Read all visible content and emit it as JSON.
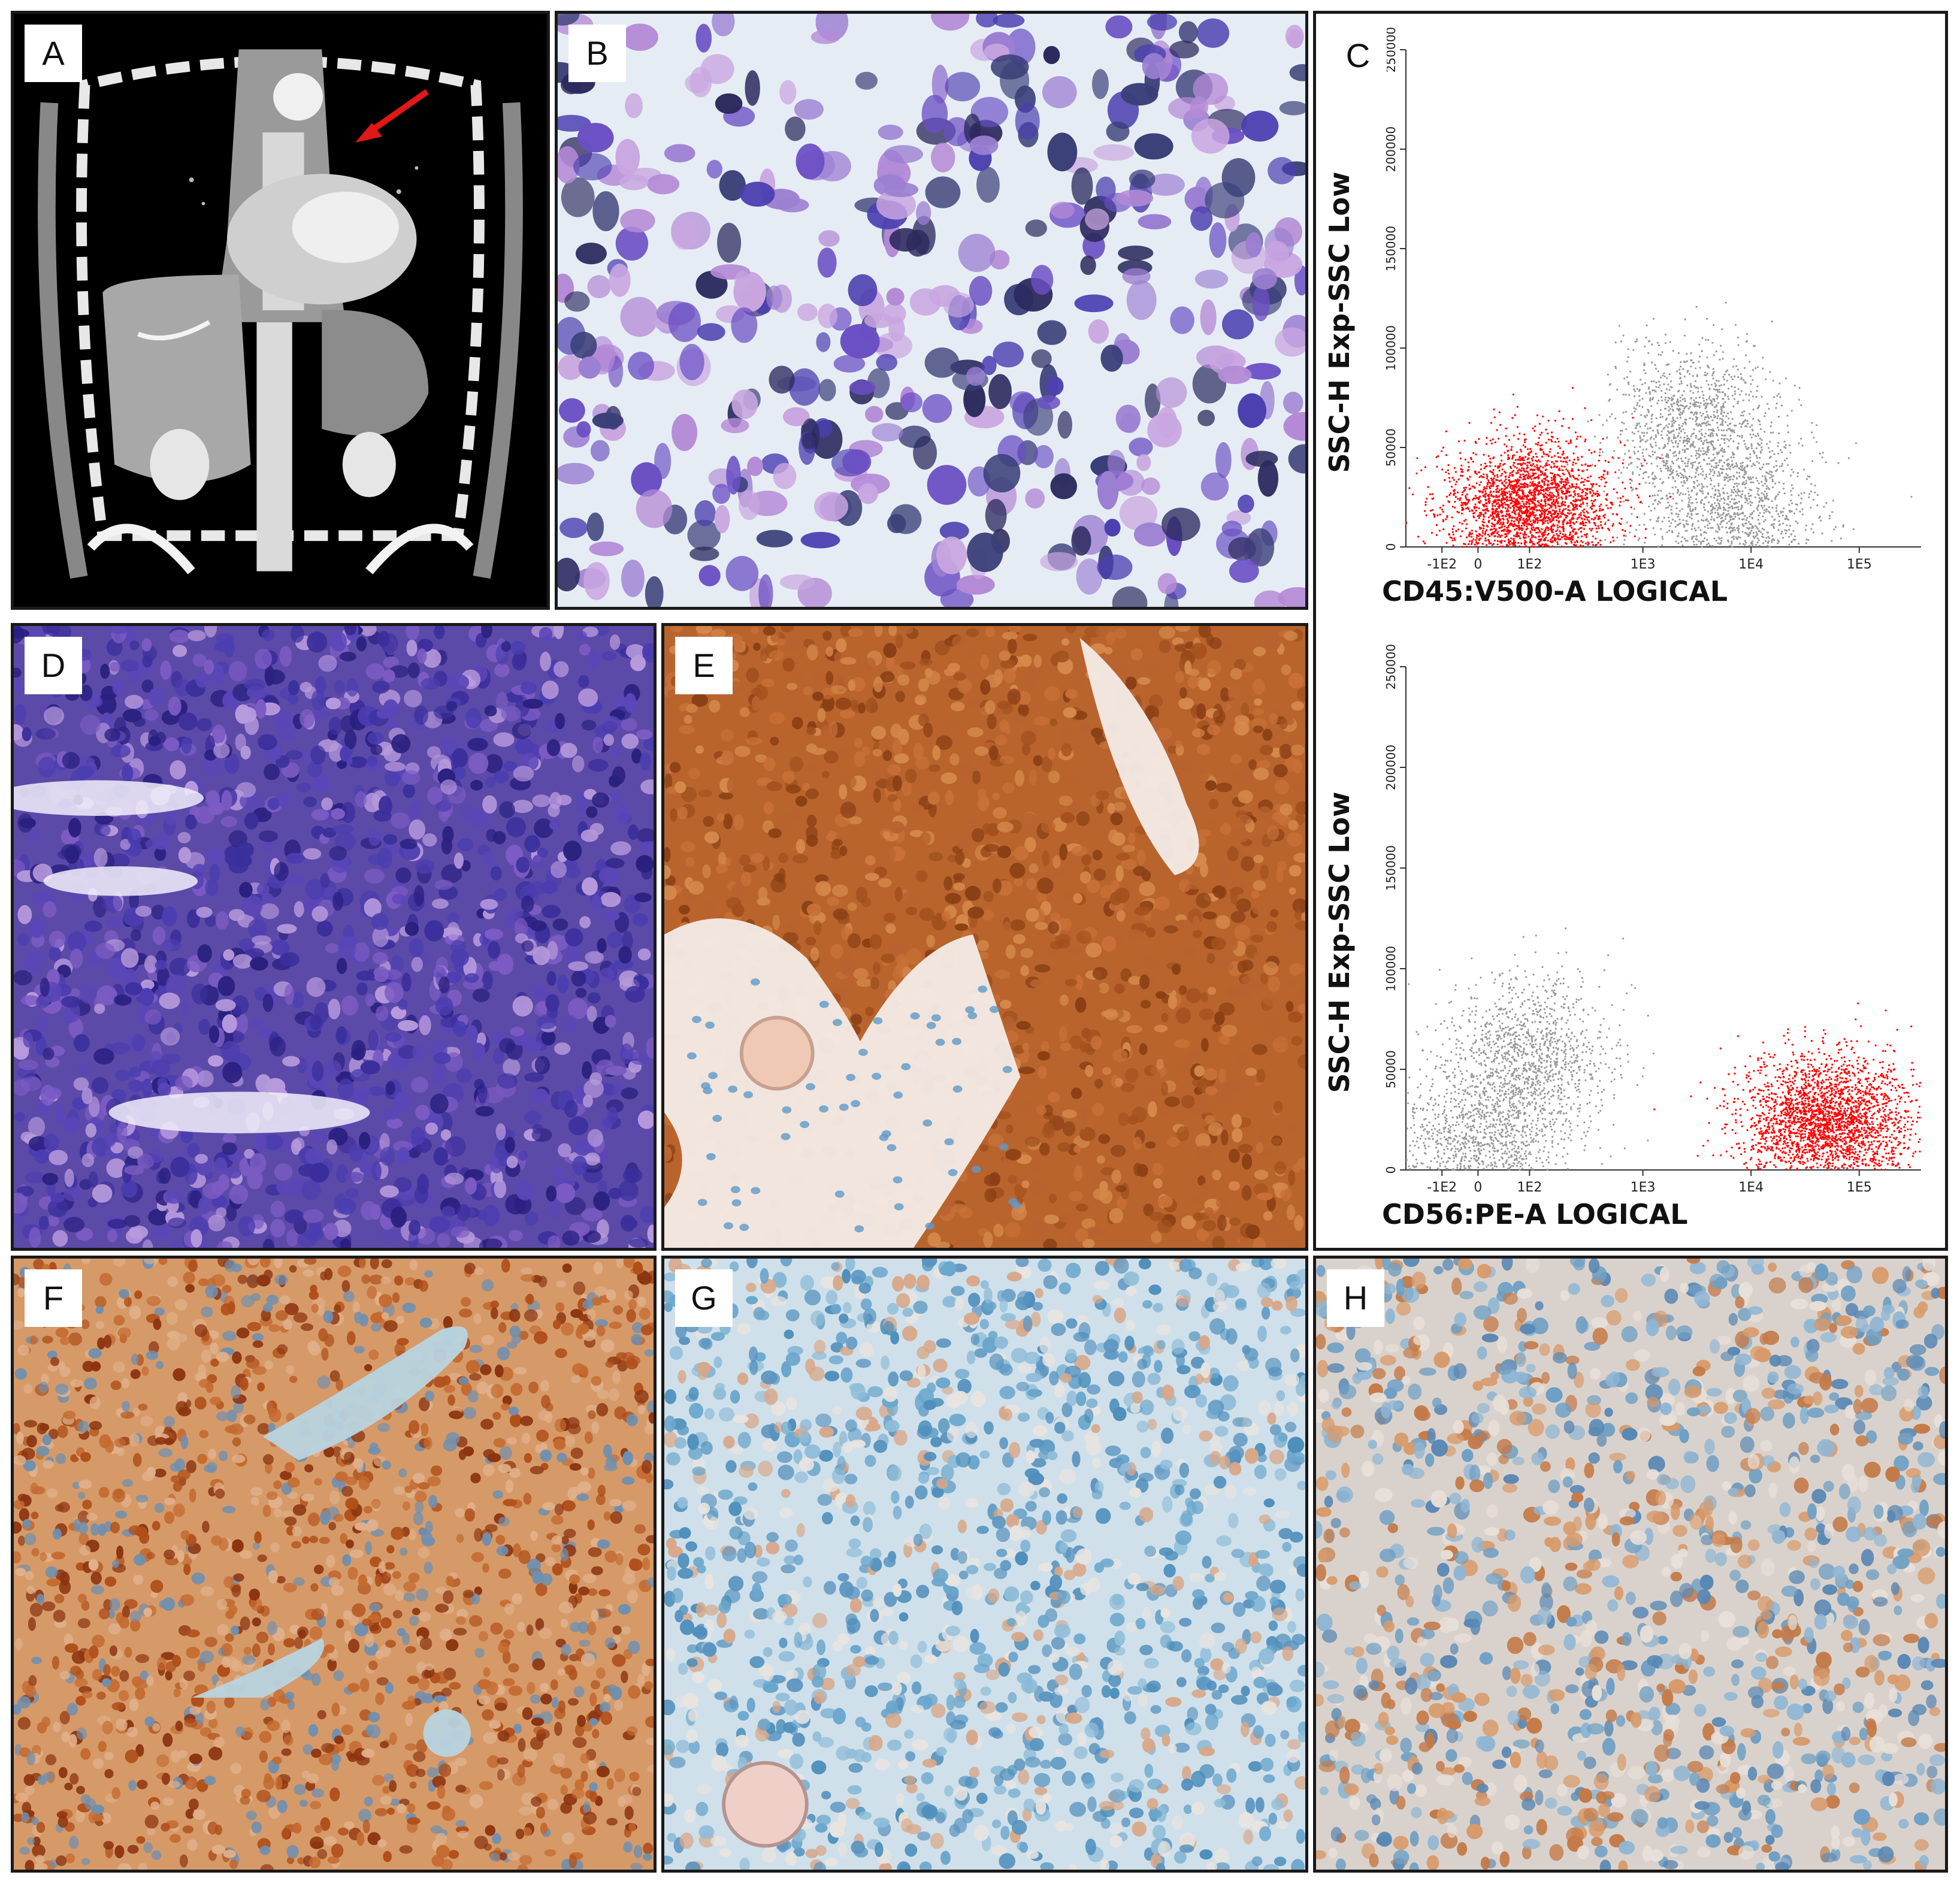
{
  "figure": {
    "panels": [
      {
        "id": "A",
        "label": "A",
        "kind": "ct-scan-coronal",
        "annotation": "red arrow"
      },
      {
        "id": "B",
        "label": "B",
        "kind": "cytology-smear"
      },
      {
        "id": "C",
        "label": "C",
        "kind": "flow-cytometry"
      },
      {
        "id": "D",
        "label": "D",
        "kind": "histology-he"
      },
      {
        "id": "E",
        "label": "E",
        "kind": "ihc-membranous-strong"
      },
      {
        "id": "F",
        "label": "F",
        "kind": "ihc-nuclear"
      },
      {
        "id": "G",
        "label": "G",
        "kind": "ihc-weak"
      },
      {
        "id": "H",
        "label": "H",
        "kind": "ihc-focal"
      }
    ]
  },
  "chart_data": [
    {
      "type": "scatter",
      "xlabel": "CD45:V500-A LOGICAL",
      "ylabel": "SSC-H Exp-SSC Low",
      "x_ticks": [
        "-1E2",
        "0",
        "1E2",
        "1E3",
        "1E4",
        "1E5"
      ],
      "y_ticks": [
        "0",
        "50000",
        "100000",
        "150000",
        "200000",
        "250000"
      ],
      "ylim": [
        0,
        250000
      ],
      "series": [
        {
          "color": "#ff0000",
          "clusters": [
            {
              "x_center": "1E2",
              "y_center": 20000
            }
          ]
        },
        {
          "color": "#9a9a9a",
          "clusters": [
            {
              "x_center": "3E3",
              "y_center": 60000
            },
            {
              "x_center": "7E3",
              "y_center": 12000
            }
          ]
        }
      ]
    },
    {
      "type": "scatter",
      "xlabel": "CD56:PE-A LOGICAL",
      "ylabel": "SSC-H Exp-SSC Low",
      "x_ticks": [
        "-1E2",
        "0",
        "1E2",
        "1E3",
        "1E4",
        "1E5"
      ],
      "y_ticks": [
        "0",
        "50000",
        "100000",
        "150000",
        "200000",
        "250000"
      ],
      "ylim": [
        0,
        250000
      ],
      "series": [
        {
          "color": "#ff0000",
          "clusters": [
            {
              "x_center": "5E4",
              "y_center": 25000
            }
          ]
        },
        {
          "color": "#9a9a9a",
          "clusters": [
            {
              "x_center": "1E2",
              "y_center": 55000
            },
            {
              "x_center": "0",
              "y_center": 10000
            }
          ]
        }
      ]
    }
  ]
}
